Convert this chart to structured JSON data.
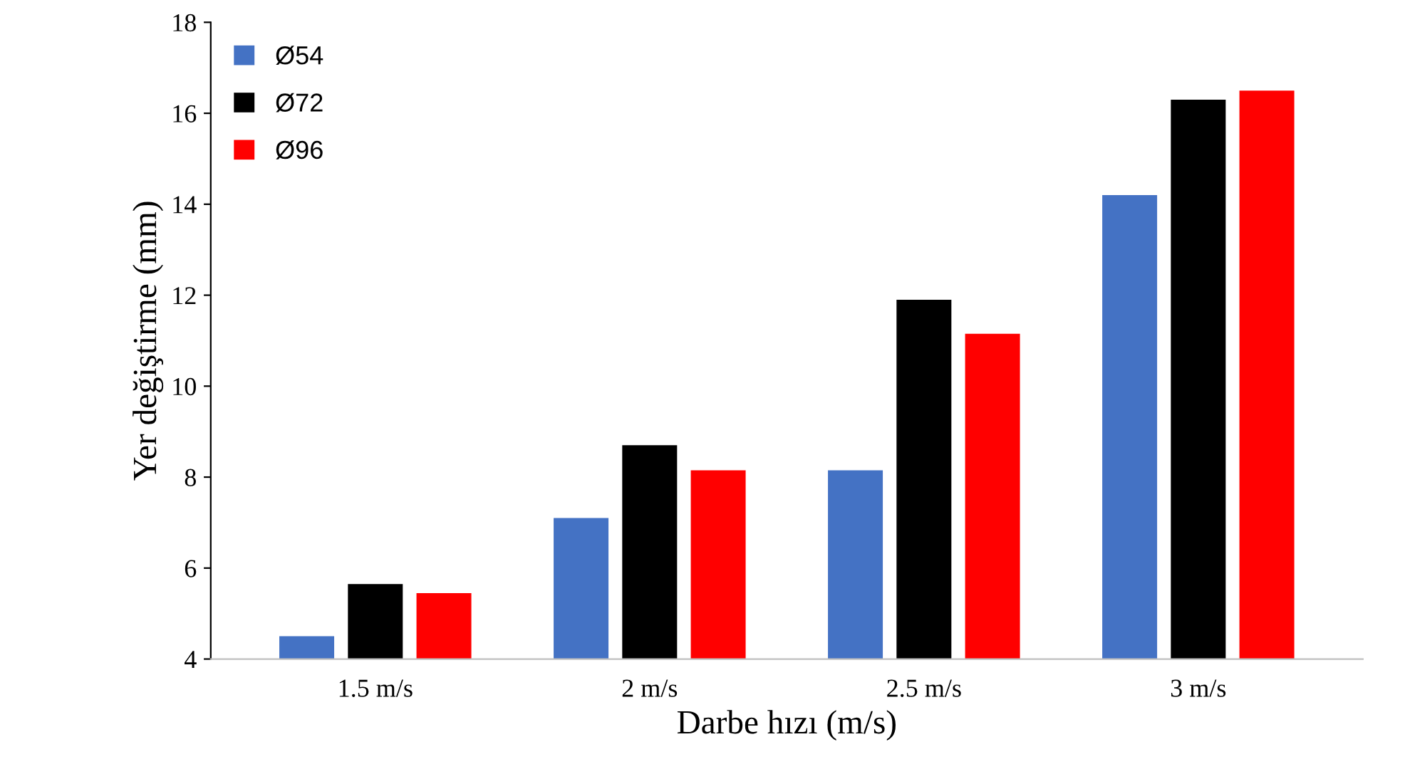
{
  "chart_data": {
    "type": "bar",
    "xlabel": "Darbe hızı (m/s)",
    "ylabel": "Yer değiştirme (mm)",
    "categories": [
      "1.5 m/s",
      "2 m/s",
      "2.5 m/s",
      "3 m/s"
    ],
    "series": [
      {
        "name": "Ø54",
        "color": "#4472c4",
        "values": [
          4.5,
          7.1,
          8.15,
          14.2
        ]
      },
      {
        "name": "Ø72",
        "color": "#000000",
        "values": [
          5.65,
          8.7,
          11.9,
          16.3
        ]
      },
      {
        "name": "Ø96",
        "color": "#ff0000",
        "values": [
          5.45,
          8.15,
          11.15,
          16.5
        ]
      }
    ],
    "ylim": [
      4,
      18
    ],
    "yticks": [
      4,
      6,
      8,
      10,
      12,
      14,
      16,
      18
    ],
    "grid": false,
    "legend": "top left"
  }
}
